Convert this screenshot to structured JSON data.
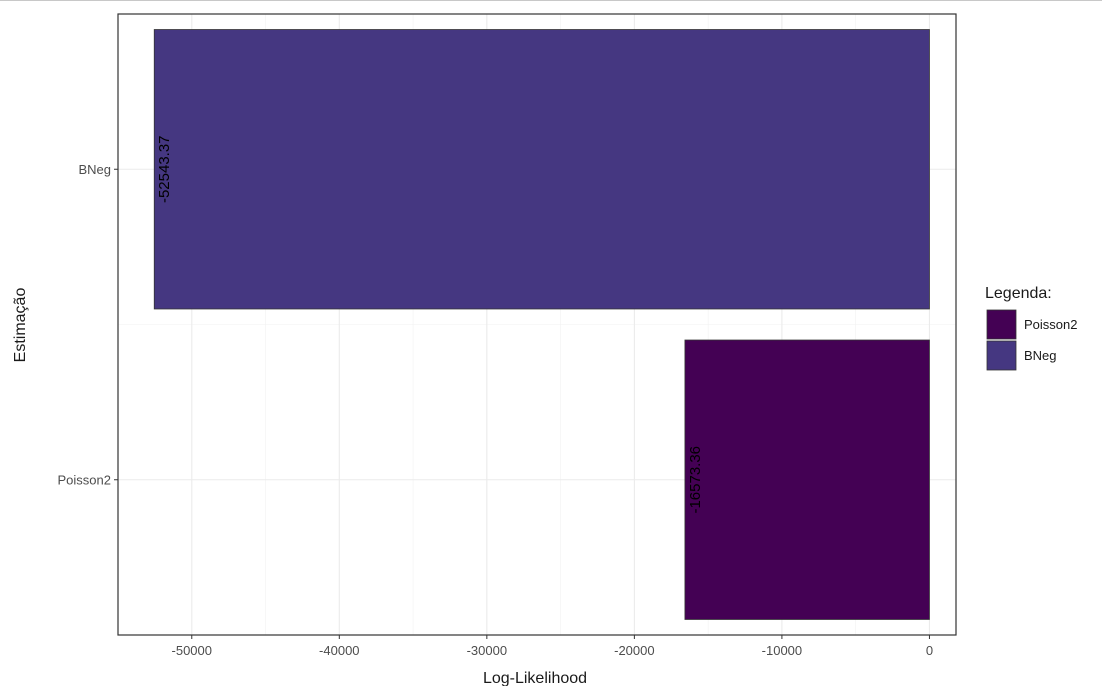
{
  "chart_data": {
    "type": "bar",
    "orientation": "horizontal",
    "categories": [
      "Poisson2",
      "BNeg"
    ],
    "values": [
      -16573.36,
      -52543.37
    ],
    "data_labels": [
      "-16573.36",
      "-52543.37"
    ],
    "colors": [
      "#440154",
      "#453781"
    ],
    "xlabel": "Log-Likelihood",
    "ylabel": "Estimação",
    "xlim": [
      -55000,
      1800
    ],
    "xticks": [
      -50000,
      -40000,
      -30000,
      -20000,
      -10000,
      0
    ],
    "xtick_labels": [
      "-50000",
      "-40000",
      "-30000",
      "-20000",
      "-10000",
      "0"
    ],
    "grid": true,
    "legend": {
      "title": "Legenda:",
      "placement": "right",
      "entries": [
        {
          "label": "Poisson2",
          "color": "#440154"
        },
        {
          "label": "BNeg",
          "color": "#453781"
        }
      ]
    }
  }
}
